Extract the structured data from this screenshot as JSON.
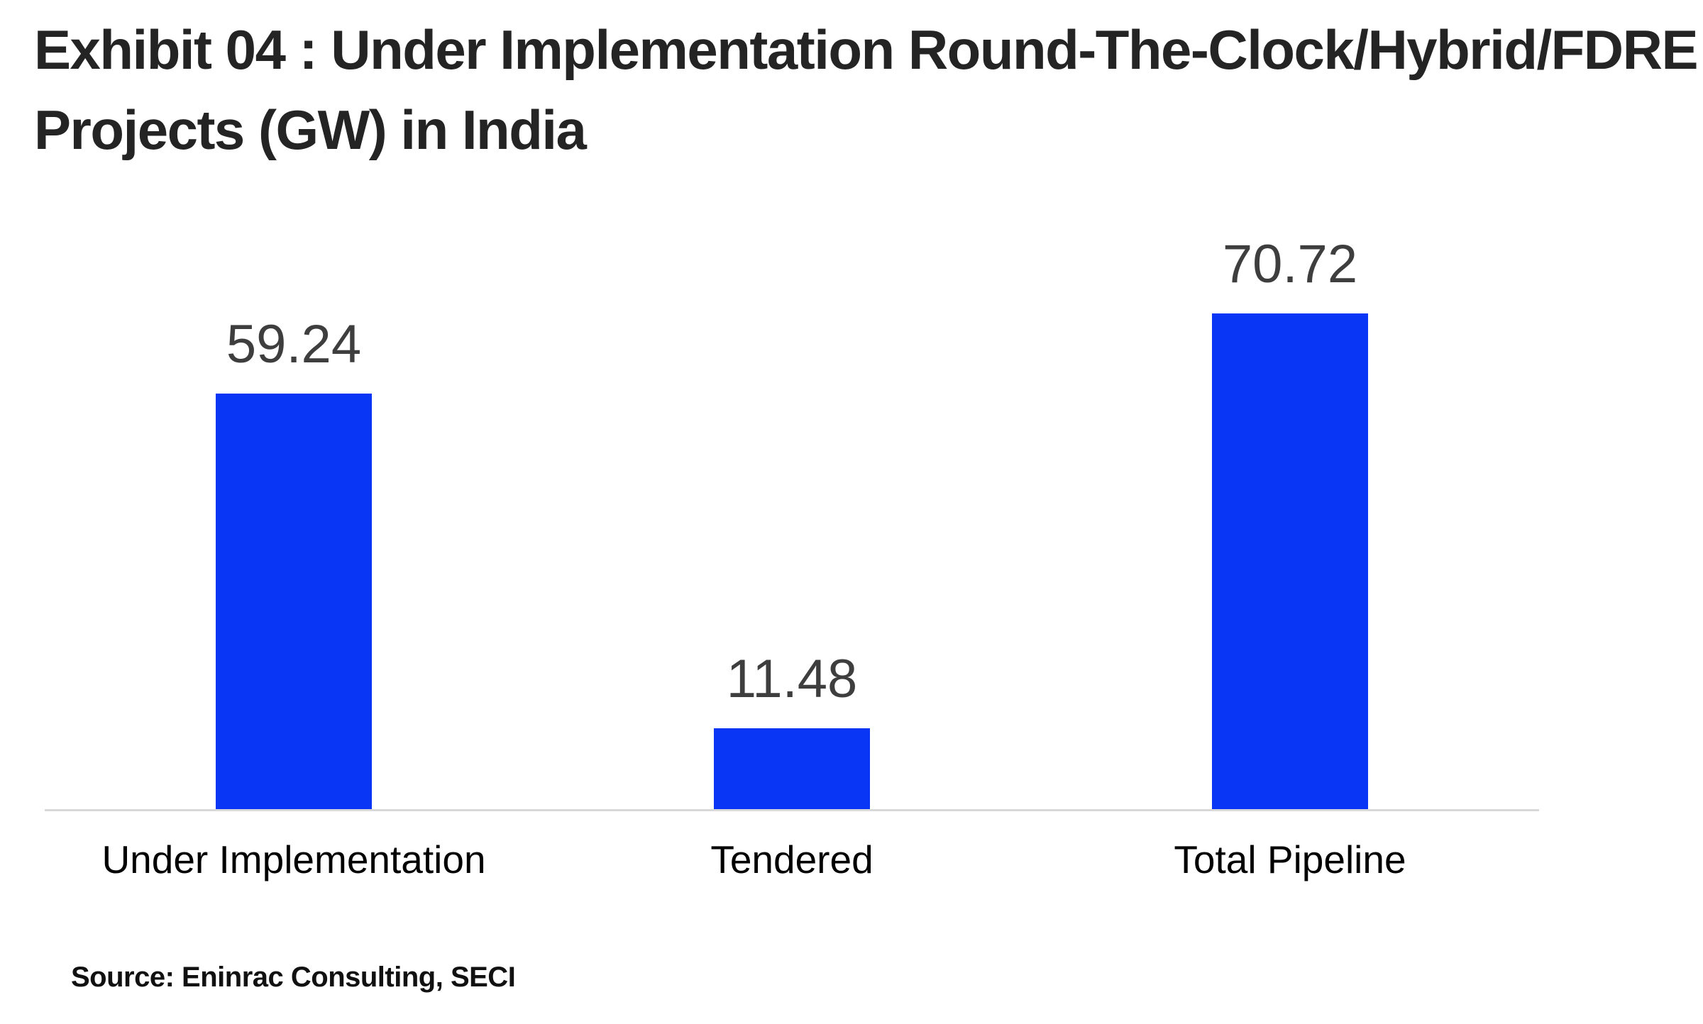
{
  "title": {
    "line1": "Exhibit 04 : Under Implementation Round-The-Clock/Hybrid/FDRE",
    "line2": "Projects (GW) in India"
  },
  "source": "Source: Eninrac Consulting, SECI",
  "colors": {
    "background": "#ffffff",
    "bar": "#0935f5",
    "axis_line": "#d8d8d8",
    "title_text": "#242424",
    "value_text": "#3e3e3e",
    "category_text": "#000000",
    "source_text": "#111111"
  },
  "chart_data": {
    "type": "bar",
    "title": "Exhibit 04 : Under Implementation Round-The-Clock/Hybrid/FDRE Projects (GW) in India",
    "categories": [
      "Under Implementation",
      "Tendered",
      "Total Pipeline"
    ],
    "values": [
      59.24,
      11.48,
      70.72
    ],
    "value_labels": [
      "59.24",
      "11.48",
      "70.72"
    ],
    "xlabel": "",
    "ylabel": "",
    "ylim": [
      0,
      83
    ],
    "grid": false,
    "legend": false,
    "source": "Source: Eninrac Consulting, SECI"
  }
}
